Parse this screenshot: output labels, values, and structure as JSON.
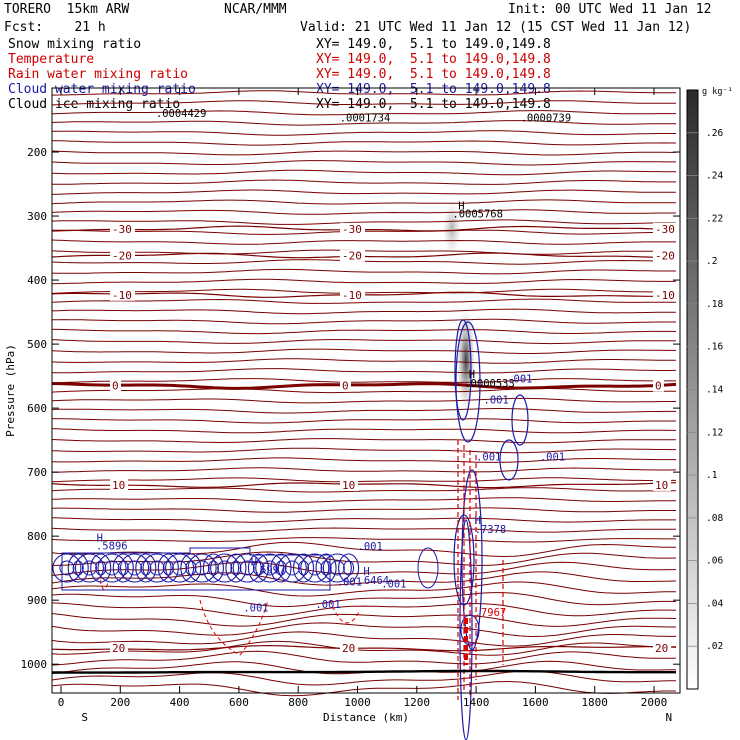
{
  "header": {
    "model": "TORERO  15km ARW",
    "org": "NCAR/MMM",
    "init": "Init: 00 UTC Wed 11 Jan 12",
    "fcst": "Fcst:    21 h",
    "valid": "Valid: 21 UTC Wed 11 Jan 12 (15 CST Wed 11 Jan 12)"
  },
  "fields": [
    {
      "name": "Snow mixing ratio",
      "xy": "XY= 149.0,  5.1 to 149.0,149.8",
      "color": "#000000"
    },
    {
      "name": "Temperature",
      "xy": "XY= 149.0,  5.1 to 149.0,149.8",
      "color": "#cc0000"
    },
    {
      "name": "Rain water mixing ratio",
      "xy": "XY= 149.0,  5.1 to 149.0,149.8",
      "color": "#cc0000"
    },
    {
      "name": "Cloud water mixing ratio",
      "xy": "XY= 149.0,  5.1 to 149.0,149.8",
      "color": "#1a1aa6"
    },
    {
      "name": "Cloud ice mixing ratio",
      "xy": "XY= 149.0,  5.1 to 149.0,149.8",
      "color": "#000000"
    }
  ],
  "colors": {
    "temperature": "#7a0000",
    "cloud_water": "#1a1aa6",
    "rain": "#dd0000",
    "ground": "#000000"
  },
  "chart_data": {
    "type": "line",
    "xlabel": "Distance (km)",
    "ylabel": "Pressure (hPa)",
    "xlim": [
      0,
      2170
    ],
    "ylim": [
      1045,
      100
    ],
    "xticks": [
      "0",
      "200",
      "400",
      "600",
      "800",
      "1000",
      "1200",
      "1400",
      "1600",
      "1800",
      "2000"
    ],
    "yticks": [
      "200",
      "300",
      "400",
      "500",
      "600",
      "700",
      "800",
      "900",
      "1000"
    ],
    "x_end_labels": {
      "left": "S",
      "right": "N"
    },
    "colorbar": {
      "unit": "g kg⁻¹",
      "ticks": [
        ".02",
        ".04",
        ".06",
        ".08",
        ".1",
        ".12",
        ".14",
        ".16",
        ".18",
        ".2",
        ".22",
        ".24",
        ".26"
      ],
      "range": [
        0,
        0.28
      ]
    },
    "isotherms": [
      {
        "label": "-30",
        "pressure": 320
      },
      {
        "label": "-20",
        "pressure": 362
      },
      {
        "label": "-10",
        "pressure": 423
      },
      {
        "label": "0",
        "pressure": 565
      },
      {
        "label": "10",
        "pressure": 720
      },
      {
        "label": "20",
        "pressure": 975
      }
    ],
    "annotations": [
      {
        "text": "H",
        "x": 1340,
        "p": 290
      },
      {
        "text": ".0005768",
        "x": 1320,
        "p": 302
      },
      {
        "text": "H",
        "x": 1375,
        "p": 553
      },
      {
        "text": ".0000533",
        "x": 1360,
        "p": 567
      },
      {
        "text": ".0004429",
        "x": 320,
        "p": 145
      },
      {
        "text": ".0001734",
        "x": 940,
        "p": 152
      },
      {
        "text": ".0000739",
        "x": 1550,
        "p": 152
      },
      {
        "text": "H",
        "x": 120,
        "p": 808
      },
      {
        "text": ".5896",
        "x": 118,
        "p": 821
      },
      {
        "text": "H",
        "x": 640,
        "p": 846
      },
      {
        "text": ".6997",
        "x": 650,
        "p": 858
      },
      {
        "text": "H",
        "x": 1020,
        "p": 861
      },
      {
        "text": ".6464",
        "x": 1000,
        "p": 875
      },
      {
        "text": "H",
        "x": 1395,
        "p": 781
      },
      {
        "text": ".7378",
        "x": 1395,
        "p": 795
      },
      {
        "text": ".7967",
        "x": 1395,
        "p": 925
      },
      {
        "text": ".001",
        "x": 1505,
        "p": 560
      },
      {
        "text": ".001",
        "x": 1425,
        "p": 593
      },
      {
        "text": ".001",
        "x": 1400,
        "p": 682
      },
      {
        "text": ".001",
        "x": 1615,
        "p": 682
      },
      {
        "text": ".001",
        "x": 1000,
        "p": 822
      },
      {
        "text": ".001",
        "x": 930,
        "p": 877
      },
      {
        "text": ".001",
        "x": 615,
        "p": 918
      },
      {
        "text": ".001",
        "x": 858,
        "p": 912
      },
      {
        "text": ".001",
        "x": 1080,
        "p": 880
      }
    ]
  }
}
